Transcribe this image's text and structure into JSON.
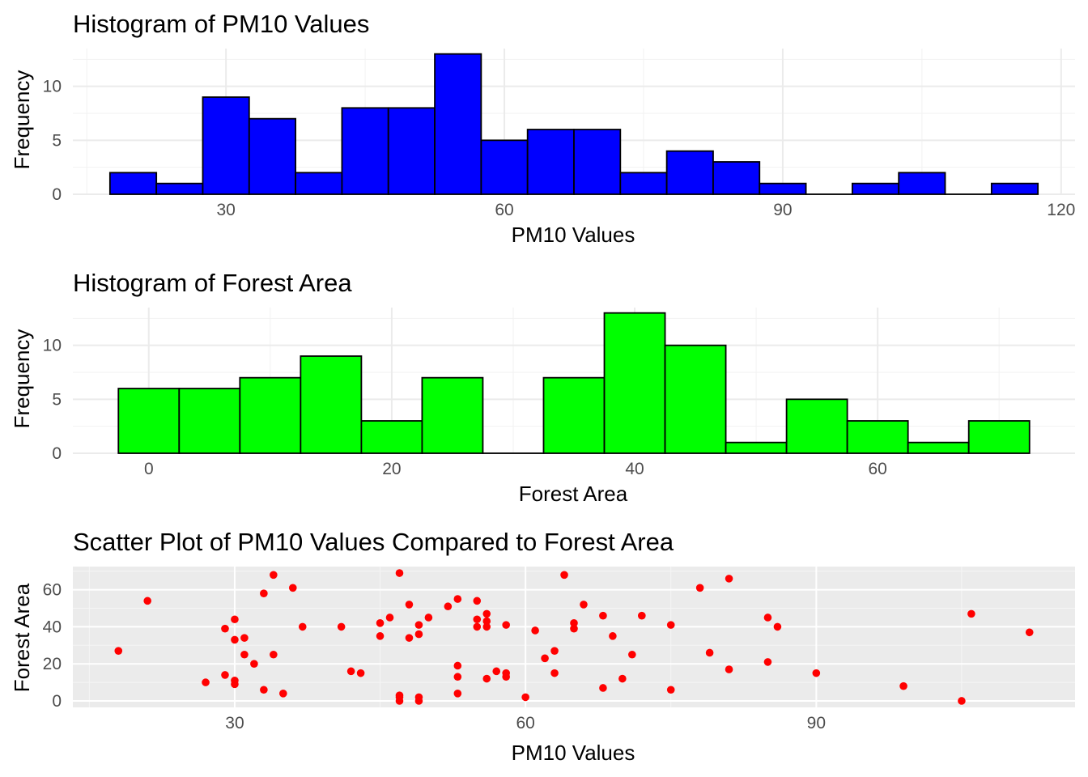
{
  "chart_data": [
    {
      "type": "bar",
      "title": "Histogram of PM10 Values",
      "xlabel": "PM10 Values",
      "ylabel": "Frequency",
      "bin_width": 5,
      "bin_start": 17.5,
      "values": [
        2,
        1,
        9,
        7,
        2,
        8,
        8,
        13,
        5,
        6,
        6,
        2,
        4,
        3,
        1,
        0,
        1,
        2,
        0,
        1
      ],
      "xlim": [
        13.5,
        121.5
      ],
      "ylim": [
        0,
        13.5
      ],
      "x_ticks": [
        30,
        60,
        90,
        120
      ],
      "y_ticks": [
        0,
        5,
        10
      ],
      "fill": "#0000FF",
      "outline": "#000000",
      "grid": true,
      "background": "#FFFFFF"
    },
    {
      "type": "bar",
      "title": "Histogram of Forest Area",
      "xlabel": "Forest Area",
      "ylabel": "Frequency",
      "bin_width": 5,
      "bin_start": -2.5,
      "values": [
        6,
        6,
        7,
        9,
        3,
        7,
        0,
        7,
        13,
        10,
        1,
        5,
        3,
        1,
        3
      ],
      "xlim": [
        -6.25,
        76.25
      ],
      "ylim": [
        0,
        13.5
      ],
      "x_ticks": [
        0,
        20,
        40,
        60
      ],
      "y_ticks": [
        0,
        5,
        10
      ],
      "fill": "#00FF00",
      "outline": "#000000",
      "grid": true,
      "background": "#FFFFFF"
    },
    {
      "type": "scatter",
      "title": "Scatter Plot of PM10 Values Compared to Forest Area",
      "xlabel": "PM10 Values",
      "ylabel": "Forest Area",
      "xlim": [
        13.3,
        116.7
      ],
      "ylim": [
        -3.5,
        72.5
      ],
      "x_ticks": [
        30,
        60,
        90
      ],
      "y_ticks": [
        0,
        20,
        40,
        60
      ],
      "color": "#FF0000",
      "grid": true,
      "background": "#EBEBEB",
      "points": [
        [
          18,
          27
        ],
        [
          21,
          54
        ],
        [
          27,
          10
        ],
        [
          29,
          39
        ],
        [
          29,
          14
        ],
        [
          30,
          44
        ],
        [
          30,
          33
        ],
        [
          30,
          11
        ],
        [
          30,
          9
        ],
        [
          31,
          34
        ],
        [
          31,
          25
        ],
        [
          32,
          20
        ],
        [
          33,
          58
        ],
        [
          33,
          6
        ],
        [
          34,
          68
        ],
        [
          34,
          25
        ],
        [
          35,
          4
        ],
        [
          36,
          61
        ],
        [
          37,
          40
        ],
        [
          41,
          40
        ],
        [
          42,
          16
        ],
        [
          43,
          15
        ],
        [
          45,
          42
        ],
        [
          45,
          35
        ],
        [
          46,
          45
        ],
        [
          47,
          69
        ],
        [
          47,
          3
        ],
        [
          47,
          2
        ],
        [
          47,
          0
        ],
        [
          48,
          52
        ],
        [
          48,
          34
        ],
        [
          49,
          41
        ],
        [
          49,
          36
        ],
        [
          49,
          2
        ],
        [
          49,
          0
        ],
        [
          50,
          45
        ],
        [
          52,
          51
        ],
        [
          53,
          55
        ],
        [
          53,
          19
        ],
        [
          53,
          13
        ],
        [
          53,
          4
        ],
        [
          55,
          54
        ],
        [
          55,
          44
        ],
        [
          55,
          40
        ],
        [
          56,
          12
        ],
        [
          56,
          47
        ],
        [
          56,
          43
        ],
        [
          56,
          40
        ],
        [
          57,
          16
        ],
        [
          58,
          41
        ],
        [
          58,
          15
        ],
        [
          58,
          13
        ],
        [
          60,
          2
        ],
        [
          61,
          38
        ],
        [
          62,
          23
        ],
        [
          63,
          27
        ],
        [
          63,
          15
        ],
        [
          64,
          68
        ],
        [
          65,
          42
        ],
        [
          65,
          39
        ],
        [
          66,
          52
        ],
        [
          68,
          46
        ],
        [
          68,
          7
        ],
        [
          69,
          35
        ],
        [
          70,
          12
        ],
        [
          71,
          25
        ],
        [
          72,
          46
        ],
        [
          75,
          41
        ],
        [
          75,
          6
        ],
        [
          78,
          61
        ],
        [
          79,
          26
        ],
        [
          81,
          66
        ],
        [
          81,
          17
        ],
        [
          85,
          45
        ],
        [
          85,
          21
        ],
        [
          86,
          40
        ],
        [
          90,
          15
        ],
        [
          99,
          8
        ],
        [
          105,
          0
        ],
        [
          106,
          47
        ],
        [
          112,
          37
        ]
      ]
    }
  ]
}
